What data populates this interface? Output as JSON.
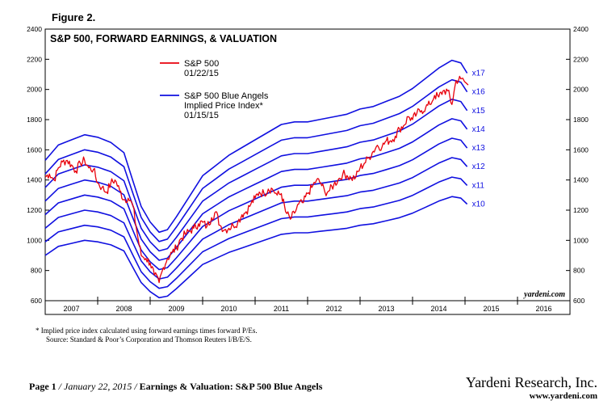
{
  "figure_label": "Figure 2.",
  "footnote": {
    "line1": "*   Implied price index calculated using forward earnings times forward P/Es.",
    "line2": "Source: Standard & Poor’s Corporation and Thomson Reuters I/B/E/S."
  },
  "footer": {
    "page": "Page 1",
    "sep1": " / ",
    "date": "January 22, 2015",
    "sep2": " / ",
    "title": "Earnings & Valuation: S&P 500 Blue Angels",
    "firm": "Yardeni Research, Inc.",
    "url": "www.yardeni.com"
  },
  "colors": {
    "sp500": "#e8000b",
    "angels": "#1010e0"
  },
  "chart_data": {
    "type": "line",
    "title": "S&P 500, FORWARD EARNINGS, & VALUATION",
    "watermark": "yardeni.com",
    "ylim": [
      600,
      2400
    ],
    "xlim": [
      2007,
      2017
    ],
    "yticks": [
      600,
      800,
      1000,
      1200,
      1400,
      1600,
      1800,
      2000,
      2200,
      2400
    ],
    "xtick_labels": [
      "2007",
      "2008",
      "2009",
      "2010",
      "2011",
      "2012",
      "2013",
      "2014",
      "2015",
      "2016"
    ],
    "legend": [
      {
        "key": "sp500",
        "lines": [
          "S&P 500",
          "01/22/15"
        ]
      },
      {
        "key": "angels",
        "lines": [
          "S&P 500 Blue Angels",
          "Implied Price Index*",
          "01/15/15"
        ]
      }
    ],
    "sp500_series": {
      "name": "S&P 500",
      "x": [
        2007.0,
        2007.08,
        2007.17,
        2007.25,
        2007.33,
        2007.42,
        2007.5,
        2007.58,
        2007.67,
        2007.75,
        2007.83,
        2007.92,
        2008.0,
        2008.08,
        2008.17,
        2008.25,
        2008.33,
        2008.42,
        2008.5,
        2008.58,
        2008.67,
        2008.75,
        2008.83,
        2008.92,
        2009.0,
        2009.08,
        2009.17,
        2009.25,
        2009.33,
        2009.42,
        2009.5,
        2009.58,
        2009.67,
        2009.75,
        2009.83,
        2009.92,
        2010.0,
        2010.08,
        2010.17,
        2010.25,
        2010.33,
        2010.42,
        2010.5,
        2010.58,
        2010.67,
        2010.75,
        2010.83,
        2010.92,
        2011.0,
        2011.08,
        2011.17,
        2011.25,
        2011.33,
        2011.42,
        2011.5,
        2011.58,
        2011.67,
        2011.75,
        2011.83,
        2011.92,
        2012.0,
        2012.08,
        2012.17,
        2012.25,
        2012.33,
        2012.42,
        2012.5,
        2012.58,
        2012.67,
        2012.75,
        2012.83,
        2012.92,
        2013.0,
        2013.08,
        2013.17,
        2013.25,
        2013.33,
        2013.42,
        2013.5,
        2013.58,
        2013.67,
        2013.75,
        2013.83,
        2013.92,
        2014.0,
        2014.08,
        2014.17,
        2014.25,
        2014.33,
        2014.42,
        2014.5,
        2014.58,
        2014.67,
        2014.75,
        2014.83,
        2014.92,
        2015.06
      ],
      "values": [
        1420,
        1440,
        1400,
        1480,
        1520,
        1530,
        1500,
        1460,
        1510,
        1530,
        1480,
        1470,
        1380,
        1350,
        1320,
        1380,
        1400,
        1330,
        1270,
        1280,
        1230,
        1050,
        900,
        880,
        850,
        770,
        720,
        820,
        880,
        920,
        950,
        1010,
        1040,
        1060,
        1080,
        1110,
        1120,
        1090,
        1150,
        1190,
        1100,
        1070,
        1080,
        1100,
        1120,
        1170,
        1190,
        1240,
        1280,
        1320,
        1310,
        1340,
        1340,
        1300,
        1310,
        1190,
        1140,
        1180,
        1240,
        1250,
        1310,
        1350,
        1400,
        1380,
        1320,
        1330,
        1370,
        1400,
        1440,
        1430,
        1410,
        1420,
        1480,
        1510,
        1550,
        1590,
        1630,
        1620,
        1660,
        1660,
        1690,
        1740,
        1760,
        1820,
        1800,
        1840,
        1860,
        1880,
        1900,
        1960,
        1950,
        1990,
        1990,
        1900,
        2060,
        2070,
        2030
      ]
    },
    "angel_x": [
      2007.0,
      2007.25,
      2007.5,
      2007.75,
      2008.0,
      2008.25,
      2008.5,
      2008.67,
      2008.83,
      2009.0,
      2009.17,
      2009.33,
      2009.5,
      2009.75,
      2010.0,
      2010.25,
      2010.5,
      2010.75,
      2011.0,
      2011.25,
      2011.5,
      2011.75,
      2012.0,
      2012.25,
      2012.5,
      2012.75,
      2013.0,
      2013.25,
      2013.5,
      2013.75,
      2014.0,
      2014.25,
      2014.5,
      2014.75,
      2014.92,
      2015.04
    ],
    "forward_earnings": [
      90,
      96,
      98,
      100,
      99,
      97,
      93,
      82,
      72,
      66,
      62,
      63,
      68,
      76,
      84,
      88,
      92,
      95,
      98,
      101,
      104,
      105,
      105,
      106,
      107,
      108,
      110,
      111,
      113,
      115,
      118,
      122,
      126,
      129,
      128,
      124
    ],
    "angel_series": [
      {
        "multiple": 17,
        "label": "x17"
      },
      {
        "multiple": 16,
        "label": "x16"
      },
      {
        "multiple": 15,
        "label": "x15"
      },
      {
        "multiple": 14,
        "label": "x14"
      },
      {
        "multiple": 13,
        "label": "x13"
      },
      {
        "multiple": 12,
        "label": "x12"
      },
      {
        "multiple": 11,
        "label": "x11"
      },
      {
        "multiple": 10,
        "label": "x10"
      }
    ]
  }
}
